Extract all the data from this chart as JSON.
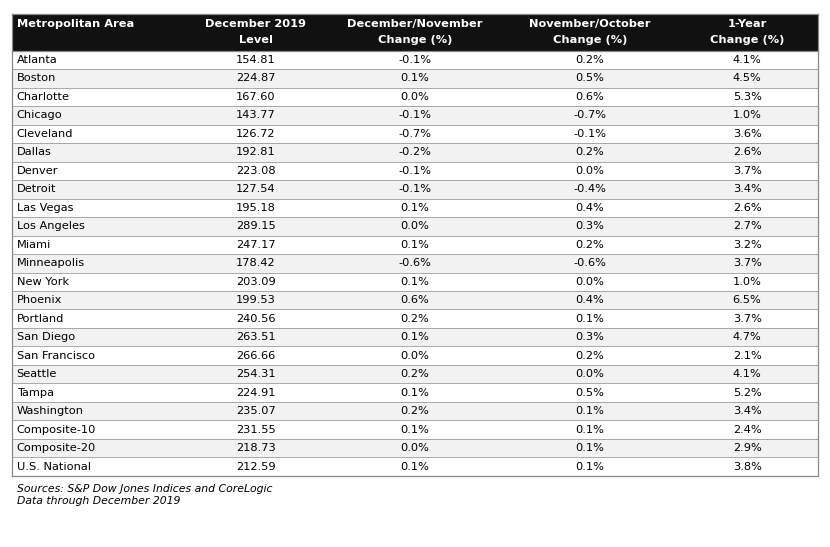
{
  "headers_line1": [
    "Metropolitan Area",
    "December 2019",
    "December/November",
    "November/October",
    "1-Year"
  ],
  "headers_line2": [
    "",
    "Level",
    "Change (%)",
    "Change (%)",
    "Change (%)"
  ],
  "rows": [
    [
      "Atlanta",
      "154.81",
      "-0.1%",
      "0.2%",
      "4.1%"
    ],
    [
      "Boston",
      "224.87",
      "0.1%",
      "0.5%",
      "4.5%"
    ],
    [
      "Charlotte",
      "167.60",
      "0.0%",
      "0.6%",
      "5.3%"
    ],
    [
      "Chicago",
      "143.77",
      "-0.1%",
      "-0.7%",
      "1.0%"
    ],
    [
      "Cleveland",
      "126.72",
      "-0.7%",
      "-0.1%",
      "3.6%"
    ],
    [
      "Dallas",
      "192.81",
      "-0.2%",
      "0.2%",
      "2.6%"
    ],
    [
      "Denver",
      "223.08",
      "-0.1%",
      "0.0%",
      "3.7%"
    ],
    [
      "Detroit",
      "127.54",
      "-0.1%",
      "-0.4%",
      "3.4%"
    ],
    [
      "Las Vegas",
      "195.18",
      "0.1%",
      "0.4%",
      "2.6%"
    ],
    [
      "Los Angeles",
      "289.15",
      "0.0%",
      "0.3%",
      "2.7%"
    ],
    [
      "Miami",
      "247.17",
      "0.1%",
      "0.2%",
      "3.2%"
    ],
    [
      "Minneapolis",
      "178.42",
      "-0.6%",
      "-0.6%",
      "3.7%"
    ],
    [
      "New York",
      "203.09",
      "0.1%",
      "0.0%",
      "1.0%"
    ],
    [
      "Phoenix",
      "199.53",
      "0.6%",
      "0.4%",
      "6.5%"
    ],
    [
      "Portland",
      "240.56",
      "0.2%",
      "0.1%",
      "3.7%"
    ],
    [
      "San Diego",
      "263.51",
      "0.1%",
      "0.3%",
      "4.7%"
    ],
    [
      "San Francisco",
      "266.66",
      "0.0%",
      "0.2%",
      "2.1%"
    ],
    [
      "Seattle",
      "254.31",
      "0.2%",
      "0.0%",
      "4.1%"
    ],
    [
      "Tampa",
      "224.91",
      "0.1%",
      "0.5%",
      "5.2%"
    ],
    [
      "Washington",
      "235.07",
      "0.2%",
      "0.1%",
      "3.4%"
    ],
    [
      "Composite-10",
      "231.55",
      "0.1%",
      "0.1%",
      "2.4%"
    ],
    [
      "Composite-20",
      "218.73",
      "0.0%",
      "0.1%",
      "2.9%"
    ],
    [
      "U.S. National",
      "212.59",
      "0.1%",
      "0.1%",
      "3.8%"
    ]
  ],
  "footer": "Sources: S&P Dow Jones Indices and CoreLogic\nData through December 2019",
  "header_bg": "#111111",
  "header_fg": "#ffffff",
  "border_color": "#888888",
  "col_aligns": [
    "left",
    "center",
    "center",
    "center",
    "center"
  ],
  "header_fontsize": 8.2,
  "row_fontsize": 8.2,
  "footer_fontsize": 7.8,
  "figsize": [
    8.3,
    5.47
  ],
  "dpi": 100
}
